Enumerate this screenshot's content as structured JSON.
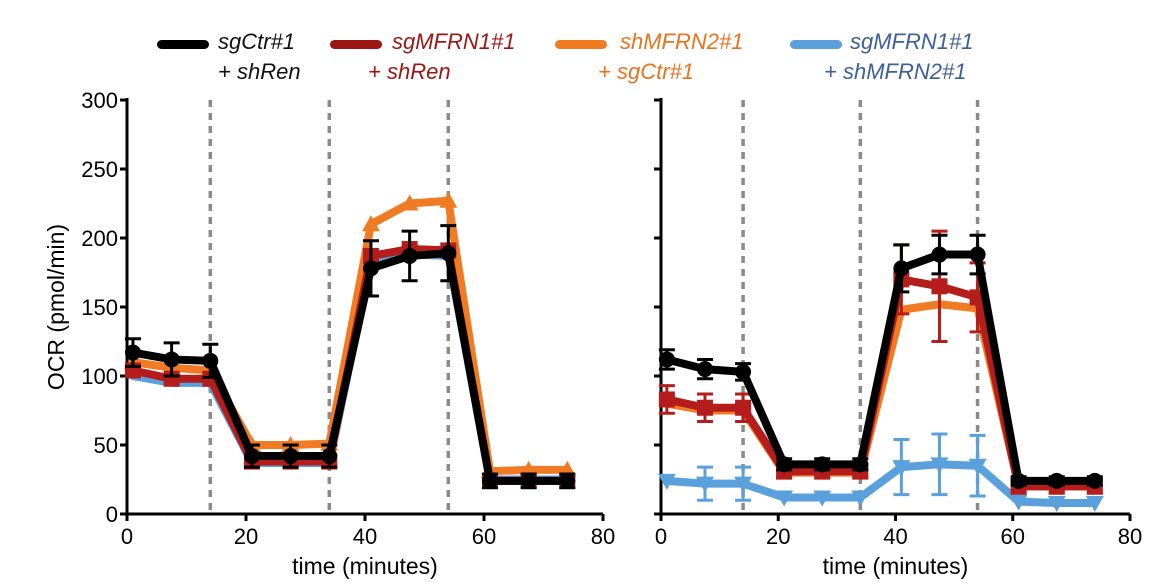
{
  "legend": [
    {
      "line1": "sgCtr#1",
      "line2": "+ shRen",
      "color": "#000000",
      "text_color": "#111111"
    },
    {
      "line1": "sgMFRN1#1",
      "line2": "+ shRen",
      "color": "#9b1515",
      "text_color": "#9b1515"
    },
    {
      "line1": "shMFRN2#1",
      "line2": "+ sgCtr#1",
      "color": "#f07b22",
      "text_color": "#e8731d"
    },
    {
      "line1": "sgMFRN1#1",
      "line2": "+ shMFRN2#1",
      "color": "#5aa0dc",
      "text_color": "#3e6096"
    }
  ],
  "chart_data": [
    {
      "type": "line",
      "ylabel": "OCR (pmol/min)",
      "xlabel": "time (minutes)",
      "xlim": [
        0,
        80
      ],
      "ylim": [
        0,
        300
      ],
      "x_ticks": [
        "0",
        "20",
        "40",
        "60",
        "80"
      ],
      "y_ticks": [
        "0",
        "50",
        "100",
        "150",
        "200",
        "250",
        "300"
      ],
      "injections": [
        14,
        34,
        54
      ],
      "x": [
        1,
        7.5,
        14,
        21,
        27.5,
        34,
        41,
        47.5,
        54,
        61,
        67.5,
        74
      ],
      "series": [
        {
          "color": "#5aa0dc",
          "marker": "none",
          "values": [
            100,
            95,
            95,
            37,
            37,
            37,
            182,
            188,
            187,
            25,
            25,
            25
          ],
          "errors": [
            0,
            0,
            0,
            0,
            0,
            0,
            0,
            0,
            0,
            0,
            0,
            0
          ]
        },
        {
          "color": "#f07b22",
          "marker": "triangle-up",
          "values": [
            110,
            106,
            104,
            50,
            50,
            51,
            210,
            225,
            227,
            31,
            32,
            32
          ],
          "errors": [
            0,
            0,
            0,
            0,
            0,
            0,
            0,
            0,
            0,
            0,
            0,
            0
          ]
        },
        {
          "color": "#b51c1c",
          "marker": "square",
          "values": [
            104,
            98,
            98,
            38,
            38,
            38,
            187,
            192,
            191,
            24,
            24,
            24
          ],
          "errors": [
            0,
            0,
            0,
            0,
            0,
            0,
            0,
            0,
            0,
            0,
            0,
            0
          ]
        },
        {
          "color": "#000000",
          "marker": "circle",
          "values": [
            117,
            112,
            111,
            42,
            42,
            42,
            178,
            187,
            189,
            24,
            24,
            24
          ],
          "errors": [
            10,
            12,
            12,
            8,
            8,
            8,
            20,
            18,
            20,
            5,
            5,
            5
          ]
        }
      ]
    },
    {
      "type": "line",
      "xlabel": "time (minutes)",
      "xlim": [
        0,
        80
      ],
      "ylim": [
        0,
        300
      ],
      "x_ticks": [
        "0",
        "20",
        "40",
        "60",
        "80"
      ],
      "y_ticks": [
        "",
        "",
        "",
        "",
        "",
        "",
        ""
      ],
      "injections": [
        14,
        34,
        54
      ],
      "x": [
        1,
        7.5,
        14,
        21,
        27.5,
        34,
        41,
        47.5,
        54,
        61,
        67.5,
        74
      ],
      "series": [
        {
          "color": "#5aa0dc",
          "marker": "triangle-down",
          "values": [
            24,
            22,
            22,
            12,
            12,
            12,
            34,
            36,
            35,
            9,
            8,
            8
          ],
          "errors": [
            0,
            12,
            12,
            0,
            0,
            0,
            20,
            22,
            22,
            0,
            0,
            0
          ]
        },
        {
          "color": "#f07b22",
          "marker": "none",
          "values": [
            80,
            75,
            75,
            30,
            30,
            30,
            148,
            152,
            149,
            20,
            20,
            20
          ],
          "errors": [
            0,
            0,
            0,
            0,
            0,
            0,
            0,
            0,
            0,
            0,
            0,
            0
          ]
        },
        {
          "color": "#b51c1c",
          "marker": "square",
          "values": [
            83,
            77,
            77,
            31,
            31,
            31,
            170,
            165,
            157,
            20,
            20,
            20
          ],
          "errors": [
            10,
            10,
            10,
            5,
            5,
            5,
            25,
            40,
            25,
            5,
            5,
            5
          ]
        },
        {
          "color": "#000000",
          "marker": "circle",
          "values": [
            112,
            105,
            103,
            36,
            36,
            36,
            178,
            188,
            188,
            24,
            24,
            24
          ],
          "errors": [
            7,
            7,
            6,
            4,
            4,
            4,
            17,
            14,
            14,
            3,
            3,
            3
          ]
        }
      ]
    }
  ]
}
